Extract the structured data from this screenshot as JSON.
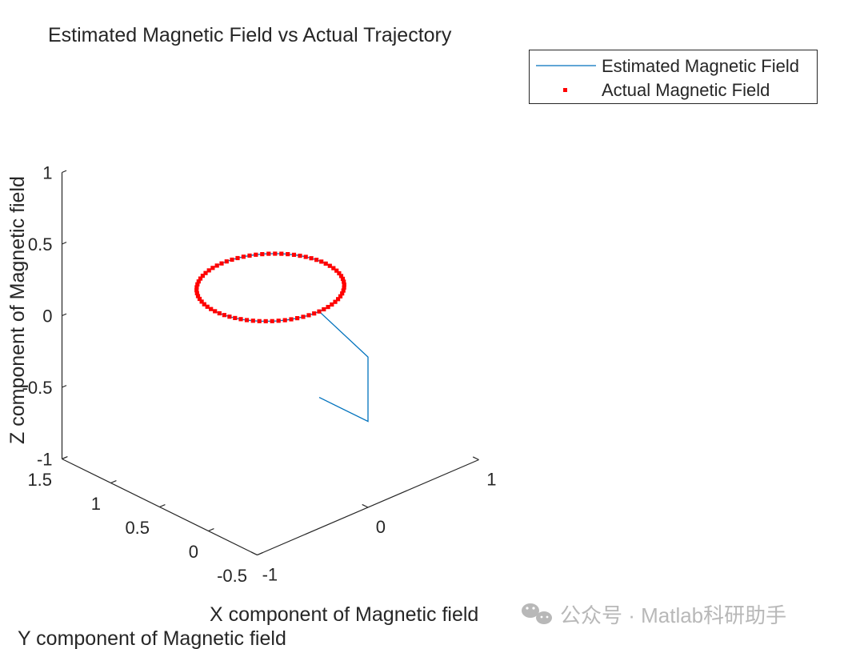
{
  "chart_data": {
    "type": "line",
    "projection": "3d",
    "title": "Estimated Magnetic Field vs Actual Trajectory",
    "xlabel": "X component of Magnetic field",
    "ylabel": "Y component of Magnetic field",
    "zlabel": "Z component of Magnetic field",
    "xlim": [
      -1,
      1
    ],
    "ylim": [
      -0.5,
      1.5
    ],
    "zlim": [
      -1,
      1
    ],
    "xticks": [
      "-1",
      "0",
      "1"
    ],
    "yticks": [
      "-0.5",
      "0",
      "0.5",
      "1",
      "1.5"
    ],
    "zticks": [
      "-1",
      "-0.5",
      "0",
      "0.5",
      "1"
    ],
    "grid": false,
    "legend_position": "top-right",
    "series": [
      {
        "name": "Estimated Magnetic Field",
        "style": "line",
        "color": "#0072BD",
        "start_path": [
          [
            0,
            0,
            -0.4
          ],
          [
            0,
            -0.5,
            -0.4
          ],
          [
            0,
            -0.5,
            0.05
          ]
        ],
        "circle": {
          "center": [
            0,
            0.5,
            0.2
          ],
          "radius": 0.5,
          "plane": "z"
        }
      },
      {
        "name": "Actual Magnetic Field",
        "style": "markers",
        "marker": "square",
        "color": "#FF0000",
        "points": 72,
        "circle": {
          "center": [
            0,
            0.5,
            0.2
          ],
          "radius": 0.5,
          "plane": "z"
        }
      }
    ]
  },
  "watermark": {
    "icon": "wechat-icon",
    "text": "公众号 · Matlab科研助手"
  }
}
